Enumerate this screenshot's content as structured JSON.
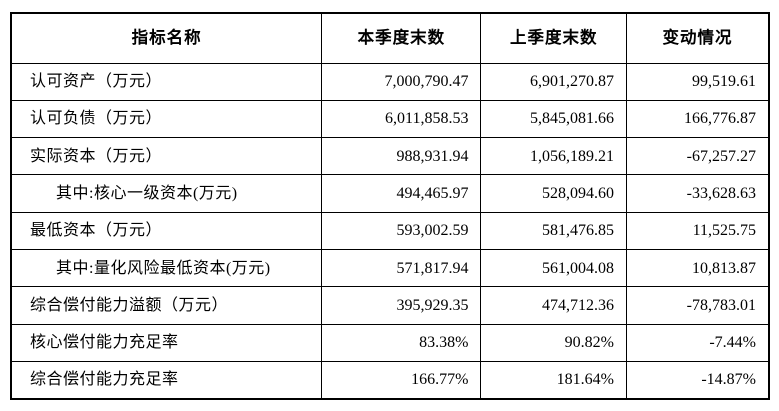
{
  "table": {
    "columns": [
      {
        "key": "name",
        "label": "指标名称"
      },
      {
        "key": "current",
        "label": "本季度末数"
      },
      {
        "key": "previous",
        "label": "上季度末数"
      },
      {
        "key": "change",
        "label": "变动情况"
      }
    ],
    "rows": [
      {
        "name": "认可资产（万元）",
        "indent": false,
        "current": "7,000,790.47",
        "previous": "6,901,270.87",
        "change": "99,519.61"
      },
      {
        "name": "认可负债（万元）",
        "indent": false,
        "current": "6,011,858.53",
        "previous": "5,845,081.66",
        "change": "166,776.87"
      },
      {
        "name": "实际资本（万元）",
        "indent": false,
        "current": "988,931.94",
        "previous": "1,056,189.21",
        "change": "-67,257.27"
      },
      {
        "name": "其中:核心一级资本(万元)",
        "indent": true,
        "current": "494,465.97",
        "previous": "528,094.60",
        "change": "-33,628.63"
      },
      {
        "name": "最低资本（万元）",
        "indent": false,
        "current": "593,002.59",
        "previous": "581,476.85",
        "change": "11,525.75"
      },
      {
        "name": "其中:量化风险最低资本(万元)",
        "indent": true,
        "current": "571,817.94",
        "previous": "561,004.08",
        "change": "10,813.87"
      },
      {
        "name": "综合偿付能力溢额（万元）",
        "indent": false,
        "current": "395,929.35",
        "previous": "474,712.36",
        "change": "-78,783.01"
      },
      {
        "name": "核心偿付能力充足率",
        "indent": false,
        "current": "83.38%",
        "previous": "90.82%",
        "change": "-7.44%"
      },
      {
        "name": "综合偿付能力充足率",
        "indent": false,
        "current": "166.77%",
        "previous": "181.64%",
        "change": "-14.87%"
      }
    ],
    "colors": {
      "border": "#000000",
      "text": "#000000",
      "background": "#ffffff"
    }
  }
}
